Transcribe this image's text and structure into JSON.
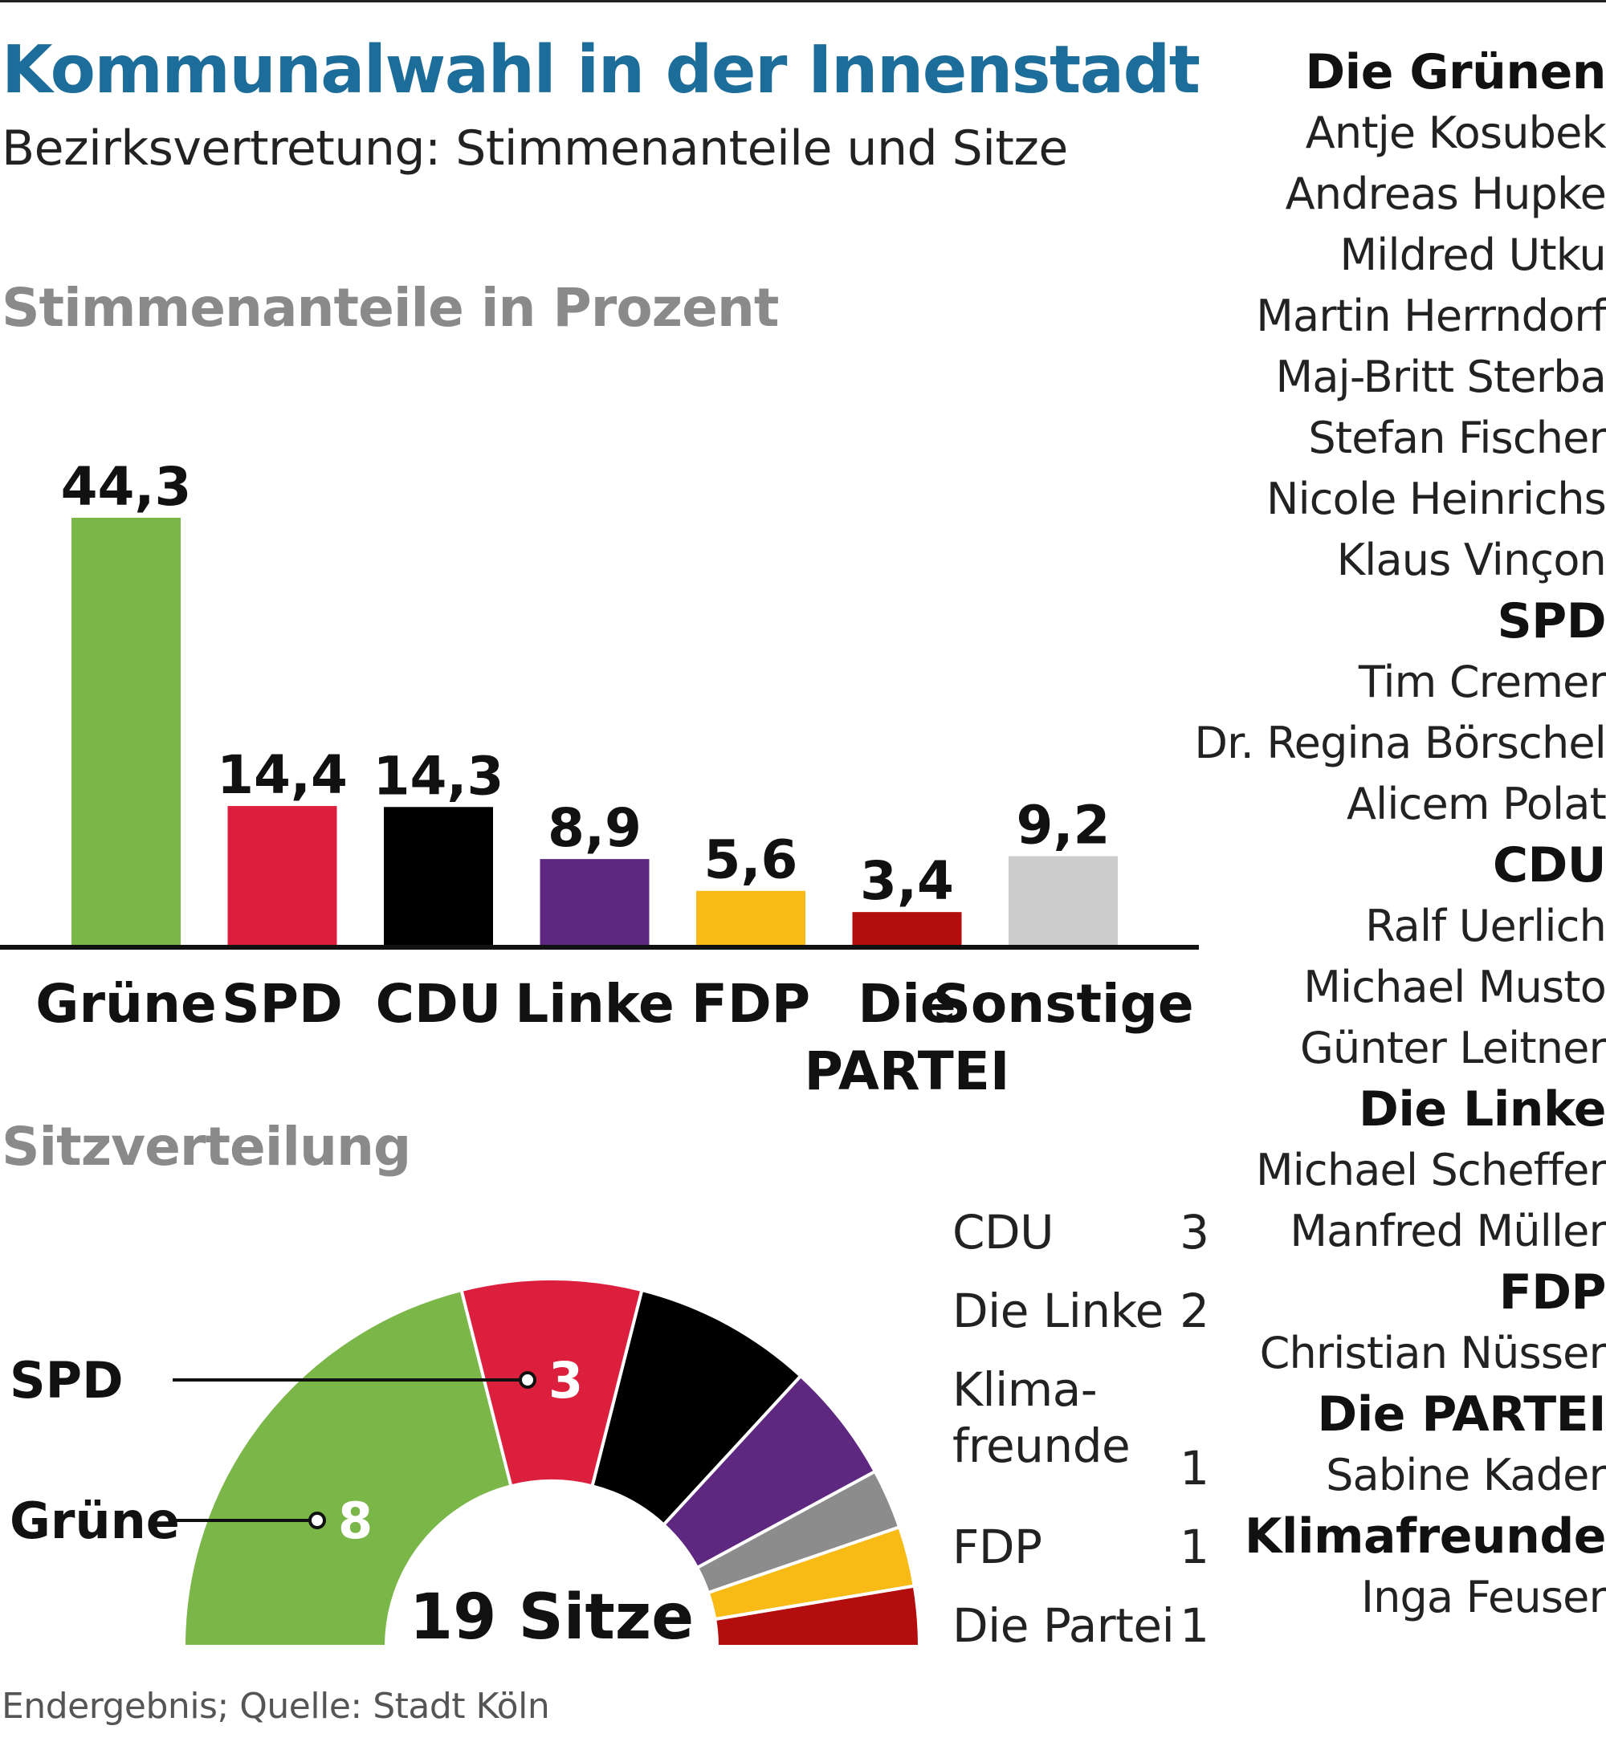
{
  "title": "Kommunalwahl in der Innenstadt",
  "subtitle": "Bezirksvertretung: Stimmenanteile und Sitze",
  "bar_section_title": "Stimmenanteile in Prozent",
  "seat_section_title": "Sitzverteilung",
  "footer": "Endergebnis; Quelle: Stadt Köln",
  "chart_data": [
    {
      "type": "bar",
      "title": "Stimmenanteile in Prozent",
      "categories": [
        "Grüne",
        "SPD",
        "CDU",
        "Linke",
        "FDP",
        "Die PARTEI",
        "Sonstige"
      ],
      "category_lines": [
        [
          "Grüne"
        ],
        [
          "SPD"
        ],
        [
          "CDU"
        ],
        [
          "Linke"
        ],
        [
          "FDP"
        ],
        [
          "Die",
          "PARTEI"
        ],
        [
          "Sonstige"
        ]
      ],
      "values": [
        44.3,
        14.4,
        14.3,
        8.9,
        5.6,
        3.4,
        9.2
      ],
      "value_labels": [
        "44,3",
        "14,4",
        "14,3",
        "8,9",
        "5,6",
        "3,4",
        "9,2"
      ],
      "colors": [
        "#7ab648",
        "#db1f3d",
        "#000000",
        "#5e2880",
        "#f8bb15",
        "#b30d0d",
        "#cccccc"
      ],
      "ylim": [
        0,
        44.3
      ],
      "xlabel": "",
      "ylabel": ""
    },
    {
      "type": "pie",
      "subtype": "parliament-semicircle",
      "title": "Sitzverteilung",
      "center_label": "19 Sitze",
      "total": 19,
      "parties": [
        "Grüne",
        "SPD",
        "CDU",
        "Die Linke",
        "Klimafreunde",
        "FDP",
        "Die Partei"
      ],
      "values": [
        8,
        3,
        3,
        2,
        1,
        1,
        1
      ],
      "colors": [
        "#7ab648",
        "#db1f3d",
        "#000000",
        "#5e2880",
        "#8c8c8c",
        "#f8bb15",
        "#b30d0d"
      ],
      "callouts": [
        {
          "party_index": 1,
          "label": "SPD",
          "value_label": "3"
        },
        {
          "party_index": 0,
          "label": "Grüne",
          "value_label": "8"
        }
      ]
    }
  ],
  "seat_legend": [
    {
      "name": "CDU",
      "seats": "3"
    },
    {
      "name": "Die Linke",
      "seats": "2"
    },
    {
      "name": "Klima-\nfreunde",
      "seats": "1"
    },
    {
      "name": "FDP",
      "seats": "1"
    },
    {
      "name": "Die Partei",
      "seats": "1"
    }
  ],
  "representatives": [
    {
      "party": "Die Grünen",
      "members": [
        "Antje Kosubek",
        "Andreas Hupke",
        "Mildred Utku",
        "Martin Herrndorf",
        "Maj-Britt Sterba",
        "Stefan Fischer",
        "Nicole Heinrichs",
        "Klaus Vinçon"
      ]
    },
    {
      "party": "SPD",
      "members": [
        "Tim Cremer",
        "Dr. Regina Börschel",
        "Alicem Polat"
      ]
    },
    {
      "party": "CDU",
      "members": [
        "Ralf Uerlich",
        "Michael Musto",
        "Günter Leitner"
      ]
    },
    {
      "party": "Die Linke",
      "members": [
        "Michael Scheffer",
        "Manfred Müller"
      ]
    },
    {
      "party": "FDP",
      "members": [
        "Christian Nüsser"
      ]
    },
    {
      "party": "Die PARTEI",
      "members": [
        "Sabine Kader"
      ]
    },
    {
      "party": "Klimafreunde",
      "members": [
        "Inga Feuser"
      ]
    }
  ]
}
